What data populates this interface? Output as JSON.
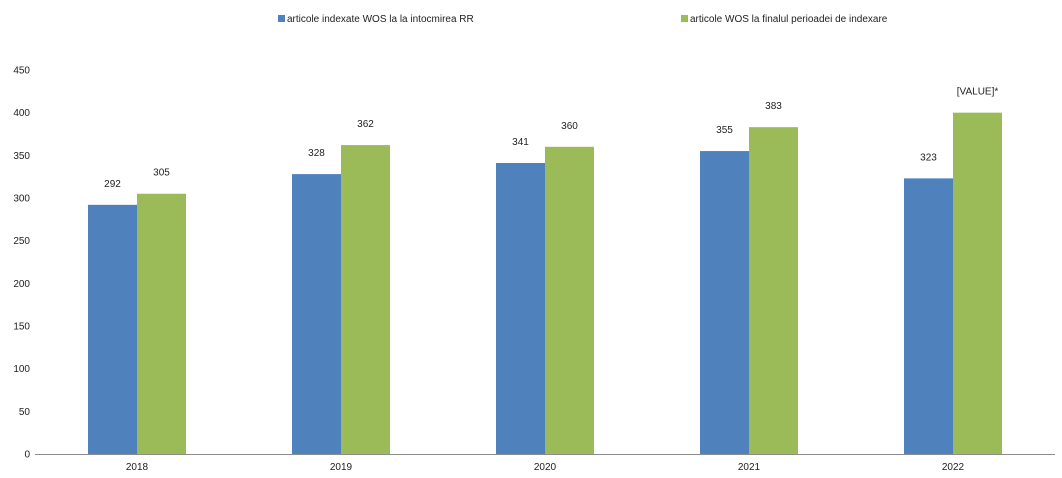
{
  "chart_data": {
    "type": "bar",
    "categories": [
      "2018",
      "2019",
      "2020",
      "2021",
      "2022"
    ],
    "series": [
      {
        "name": "articole indexate WOS la la intocmirea RR",
        "color": "#4F81BD",
        "values": [
          292,
          328,
          341,
          355,
          323
        ],
        "labels": [
          "292",
          "328",
          "341",
          "355",
          "323"
        ]
      },
      {
        "name": "articole WOS la finalul perioadei de indexare",
        "color": "#9BBB59",
        "values": [
          305,
          362,
          360,
          383,
          400
        ],
        "labels": [
          "305",
          "362",
          "360",
          "383",
          "[VALUE]*"
        ]
      }
    ],
    "ylim": [
      0,
      450
    ],
    "yticks": [
      0,
      50,
      100,
      150,
      200,
      250,
      300,
      350,
      400,
      450
    ],
    "grid": false,
    "legend_position": "top"
  }
}
